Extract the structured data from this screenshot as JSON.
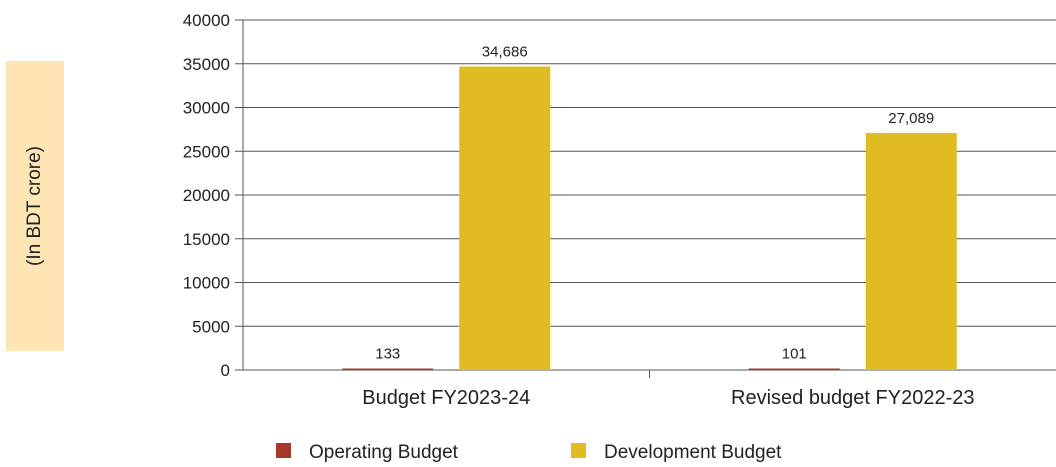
{
  "chart_data": {
    "type": "bar",
    "categories": [
      "Budget FY2023-24",
      "Revised budget FY2022-23"
    ],
    "series": [
      {
        "name": "Operating Budget",
        "values": [
          133,
          101
        ],
        "color": "#a6372a",
        "labels": [
          "133",
          "101"
        ]
      },
      {
        "name": "Development Budget",
        "values": [
          34686,
          27089
        ],
        "color": "#e0bb22",
        "labels": [
          "34,686",
          "27,089"
        ]
      }
    ],
    "ylabel": "(In BDT crore)",
    "ylim": [
      0,
      40000
    ],
    "yticks": [
      0,
      5000,
      10000,
      15000,
      20000,
      25000,
      30000,
      35000,
      40000
    ],
    "grid": true,
    "legend": "bottom"
  }
}
